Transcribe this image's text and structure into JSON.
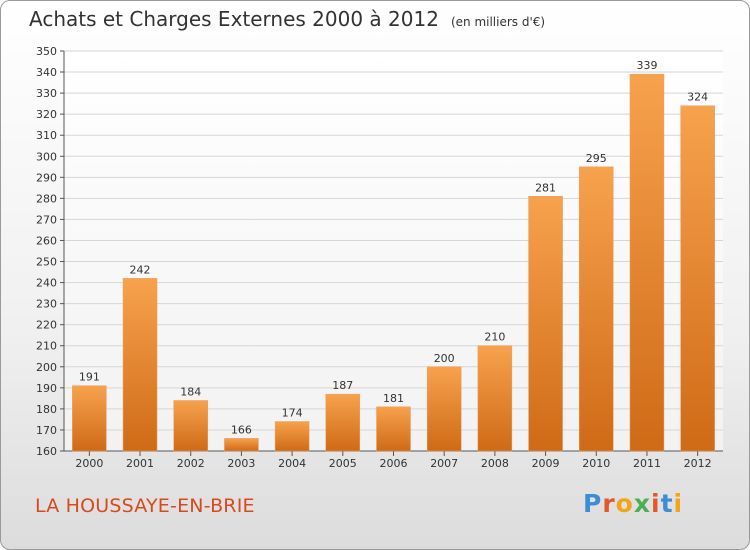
{
  "header": {
    "title": "Achats et Charges Externes 2000 à 2012",
    "unit": "(en milliers d'€)"
  },
  "footer": {
    "location": "LA HOUSSAYE-EN-BRIE",
    "logo": "Proxiti"
  },
  "colors": {
    "bar_light": "#f7a24e",
    "bar_dark": "#cf6a17",
    "location_text": "#d84a1b",
    "logo_letters": [
      "#3b8ed6",
      "#e4572e",
      "#f2a516",
      "#4caf50",
      "#e4572e",
      "#3b8ed6",
      "#f2a516"
    ]
  },
  "chart_data": {
    "type": "bar",
    "title": "Achats et Charges Externes 2000 à 2012",
    "categories": [
      "2000",
      "2001",
      "2002",
      "2003",
      "2004",
      "2005",
      "2006",
      "2007",
      "2008",
      "2009",
      "2010",
      "2011",
      "2012"
    ],
    "values": [
      191,
      242,
      184,
      166,
      174,
      187,
      181,
      200,
      210,
      281,
      295,
      339,
      324
    ],
    "ylim": [
      160,
      350
    ],
    "yticks": [
      160,
      170,
      180,
      190,
      200,
      210,
      220,
      230,
      240,
      250,
      260,
      270,
      280,
      290,
      300,
      310,
      320,
      330,
      340,
      350
    ],
    "grid": true,
    "legend": "none"
  }
}
